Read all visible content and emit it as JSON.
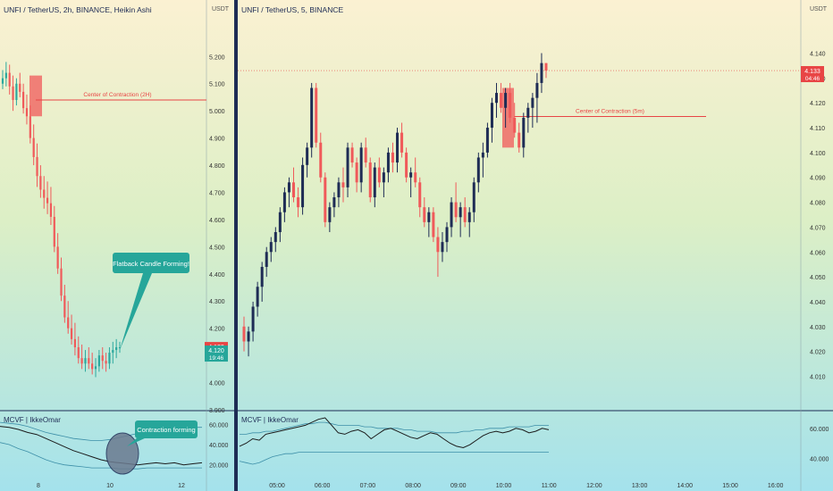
{
  "colors": {
    "bg_top": "#fbf1d2",
    "bg_bottom": "#a4e2ec",
    "bull": "#1e2c55",
    "bear": "#f05a5a",
    "ha_bull": "#2ba89e",
    "ha_bear": "#f05a5a",
    "divider": "#1e2c55",
    "level_line": "#e84545",
    "callout_fill": "#26a69a",
    "price_badge": "#e84545",
    "price_badge_teal": "#26a69a",
    "indicator_line": "#1b1b1b",
    "band_line": "#3d8fa8"
  },
  "chart_data": [
    {
      "type": "candlestick",
      "title": "UNFI / TetherUS, 2h, BINANCE, Heikin Ashi",
      "axis_unit": "USDT",
      "x_ticks": [
        "8",
        "10",
        "12"
      ],
      "y_ticks": [
        "5.200",
        "5.100",
        "5.000",
        "4.900",
        "4.800",
        "4.700",
        "4.600",
        "4.500",
        "4.400",
        "4.300",
        "4.200",
        "4.000",
        "3.900"
      ],
      "ylim": [
        3.9,
        5.27
      ],
      "candles": [
        [
          5.1,
          5.15,
          5.08,
          5.12
        ],
        [
          5.12,
          5.18,
          5.09,
          5.14
        ],
        [
          5.14,
          5.17,
          5.06,
          5.09
        ],
        [
          5.09,
          5.13,
          5.0,
          5.04
        ],
        [
          5.04,
          5.12,
          5.02,
          5.1
        ],
        [
          5.1,
          5.14,
          5.05,
          5.07
        ],
        [
          5.07,
          5.1,
          4.99,
          5.01
        ],
        [
          5.01,
          5.06,
          4.95,
          4.98
        ],
        [
          4.98,
          5.02,
          4.88,
          4.9
        ],
        [
          4.9,
          4.95,
          4.8,
          4.83
        ],
        [
          4.83,
          4.88,
          4.72,
          4.76
        ],
        [
          4.76,
          4.8,
          4.68,
          4.71
        ],
        [
          4.71,
          4.76,
          4.64,
          4.68
        ],
        [
          4.68,
          4.74,
          4.62,
          4.66
        ],
        [
          4.66,
          4.72,
          4.58,
          4.61
        ],
        [
          4.61,
          4.65,
          4.48,
          4.5
        ],
        [
          4.5,
          4.55,
          4.4,
          4.42
        ],
        [
          4.42,
          4.46,
          4.3,
          4.32
        ],
        [
          4.32,
          4.36,
          4.22,
          4.24
        ],
        [
          4.24,
          4.3,
          4.18,
          4.2
        ],
        [
          4.2,
          4.25,
          4.14,
          4.16
        ],
        [
          4.16,
          4.22,
          4.1,
          4.13
        ],
        [
          4.13,
          4.17,
          4.07,
          4.09
        ],
        [
          4.09,
          4.14,
          4.05,
          4.07
        ],
        [
          4.07,
          4.12,
          4.04,
          4.09
        ],
        [
          4.09,
          4.13,
          4.05,
          4.07
        ],
        [
          4.07,
          4.11,
          4.03,
          4.05
        ],
        [
          4.05,
          4.09,
          4.02,
          4.06
        ],
        [
          4.06,
          4.12,
          4.04,
          4.1
        ],
        [
          4.1,
          4.13,
          4.05,
          4.08
        ],
        [
          4.08,
          4.11,
          4.04,
          4.07
        ],
        [
          4.07,
          4.13,
          4.05,
          4.11
        ],
        [
          4.11,
          4.15,
          4.07,
          4.12
        ],
        [
          4.12,
          4.16,
          4.09,
          4.13
        ],
        [
          4.13,
          4.15,
          4.11,
          4.13
        ]
      ],
      "level_line": {
        "value": 5.04,
        "label": "Center of Contraction (2H)"
      },
      "contraction_box": {
        "from": 5.13,
        "to": 4.98
      },
      "price_labels": [
        {
          "value": 4.133,
          "text": "4.133",
          "sub": ""
        },
        {
          "value": 4.12,
          "text": "4.120",
          "sub": "19:46"
        }
      ],
      "callout": "Flatback Candle Forming!"
    },
    {
      "type": "candlestick",
      "title": "UNFI / TetherUS, 5, BINANCE",
      "axis_unit": "USDT",
      "x_ticks": [
        "05:00",
        "06:00",
        "07:00",
        "08:00",
        "09:00",
        "10:00",
        "11:00",
        "12:00",
        "13:00",
        "14:00",
        "15:00",
        "16:00"
      ],
      "y_ticks": [
        "4.140",
        "4.130",
        "4.120",
        "4.110",
        "4.100",
        "4.090",
        "4.080",
        "4.070",
        "4.060",
        "4.050",
        "4.040",
        "4.030",
        "4.020",
        "4.010"
      ],
      "ylim": [
        4.0055,
        4.1445
      ],
      "candles": [
        [
          4.03,
          4.034,
          4.02,
          4.024
        ],
        [
          4.024,
          4.03,
          4.018,
          4.028
        ],
        [
          4.028,
          4.04,
          4.024,
          4.038
        ],
        [
          4.038,
          4.048,
          4.034,
          4.046
        ],
        [
          4.046,
          4.056,
          4.04,
          4.054
        ],
        [
          4.054,
          4.062,
          4.05,
          4.06
        ],
        [
          4.06,
          4.066,
          4.056,
          4.064
        ],
        [
          4.064,
          4.07,
          4.06,
          4.068
        ],
        [
          4.068,
          4.078,
          4.064,
          4.076
        ],
        [
          4.076,
          4.086,
          4.072,
          4.084
        ],
        [
          4.084,
          4.09,
          4.078,
          4.088
        ],
        [
          4.088,
          4.094,
          4.08,
          4.082
        ],
        [
          4.082,
          4.086,
          4.074,
          4.078
        ],
        [
          4.078,
          4.098,
          4.075,
          4.095
        ],
        [
          4.095,
          4.104,
          4.09,
          4.102
        ],
        [
          4.102,
          4.128,
          4.098,
          4.126
        ],
        [
          4.126,
          4.128,
          4.102,
          4.104
        ],
        [
          4.104,
          4.108,
          4.088,
          4.09
        ],
        [
          4.09,
          4.092,
          4.07,
          4.072
        ],
        [
          4.072,
          4.08,
          4.068,
          4.078
        ],
        [
          4.078,
          4.084,
          4.074,
          4.082
        ],
        [
          4.082,
          4.09,
          4.078,
          4.088
        ],
        [
          4.088,
          4.094,
          4.08,
          4.086
        ],
        [
          4.086,
          4.104,
          4.082,
          4.102
        ],
        [
          4.102,
          4.104,
          4.094,
          4.096
        ],
        [
          4.096,
          4.098,
          4.084,
          4.088
        ],
        [
          4.088,
          4.104,
          4.084,
          4.102
        ],
        [
          4.102,
          4.106,
          4.094,
          4.096
        ],
        [
          4.096,
          4.098,
          4.08,
          4.082
        ],
        [
          4.082,
          4.096,
          4.078,
          4.094
        ],
        [
          4.094,
          4.098,
          4.086,
          4.088
        ],
        [
          4.088,
          4.094,
          4.082,
          4.092
        ],
        [
          4.092,
          4.102,
          4.088,
          4.1
        ],
        [
          4.1,
          4.104,
          4.092,
          4.096
        ],
        [
          4.096,
          4.11,
          4.092,
          4.108
        ],
        [
          4.108,
          4.112,
          4.098,
          4.1
        ],
        [
          4.1,
          4.102,
          4.088,
          4.09
        ],
        [
          4.09,
          4.094,
          4.082,
          4.092
        ],
        [
          4.092,
          4.098,
          4.086,
          4.088
        ],
        [
          4.088,
          4.09,
          4.074,
          4.078
        ],
        [
          4.078,
          4.082,
          4.07,
          4.072
        ],
        [
          4.072,
          4.078,
          4.066,
          4.076
        ],
        [
          4.076,
          4.078,
          4.064,
          4.066
        ],
        [
          4.066,
          4.07,
          4.05,
          4.06
        ],
        [
          4.06,
          4.068,
          4.056,
          4.064
        ],
        [
          4.064,
          4.072,
          4.06,
          4.07
        ],
        [
          4.07,
          4.082,
          4.066,
          4.08
        ],
        [
          4.08,
          4.088,
          4.072,
          4.074
        ],
        [
          4.074,
          4.08,
          4.066,
          4.078
        ],
        [
          4.078,
          4.082,
          4.07,
          4.072
        ],
        [
          4.072,
          4.078,
          4.066,
          4.076
        ],
        [
          4.076,
          4.09,
          4.072,
          4.088
        ],
        [
          4.088,
          4.1,
          4.084,
          4.098
        ],
        [
          4.098,
          4.104,
          4.09,
          4.1
        ],
        [
          4.1,
          4.112,
          4.098,
          4.11
        ],
        [
          4.11,
          4.122,
          4.104,
          4.12
        ],
        [
          4.12,
          4.128,
          4.114,
          4.124
        ],
        [
          4.124,
          4.128,
          4.116,
          4.118
        ],
        [
          4.118,
          4.126,
          4.11,
          4.124
        ],
        [
          4.124,
          4.128,
          4.112,
          4.114
        ],
        [
          4.114,
          4.12,
          4.106,
          4.108
        ],
        [
          4.108,
          4.112,
          4.1,
          4.102
        ],
        [
          4.102,
          4.116,
          4.098,
          4.114
        ],
        [
          4.114,
          4.12,
          4.108,
          4.118
        ],
        [
          4.118,
          4.124,
          4.11,
          4.122
        ],
        [
          4.122,
          4.132,
          4.112,
          4.128
        ],
        [
          4.128,
          4.14,
          4.124,
          4.136
        ],
        [
          4.136,
          4.136,
          4.13,
          4.133
        ]
      ],
      "level_line": {
        "value": 4.1145,
        "label": "Center of Contraction (5m)"
      },
      "contraction_box": {
        "from": 4.126,
        "to": 4.102
      },
      "current_price_line": 4.133,
      "price_labels": [
        {
          "value": 4.133,
          "text": "4.133",
          "sub": "04:46"
        }
      ]
    }
  ],
  "indicators": [
    {
      "title": "MCVF | IkkeOmar",
      "y_ticks": [
        "60.000",
        "40.000",
        "20.000"
      ],
      "callout": "Contraction forming",
      "line": [
        58,
        57,
        55,
        52,
        50,
        46,
        42,
        38,
        34,
        31,
        28,
        25,
        23,
        22,
        21,
        20,
        21,
        22,
        21,
        22,
        20,
        21,
        22
      ],
      "upper": [
        62,
        61,
        60,
        58,
        55,
        52,
        50,
        48,
        46,
        45,
        44,
        44,
        45,
        47,
        49,
        51,
        53,
        54,
        55,
        56,
        56,
        57,
        57
      ],
      "lower": [
        42,
        40,
        36,
        33,
        29,
        25,
        22,
        20,
        19,
        18,
        17,
        17,
        17,
        16,
        16,
        16,
        17,
        17,
        17,
        17,
        17,
        17,
        17
      ]
    },
    {
      "title": "MCVF | IkkeOmar",
      "y_ticks": [
        "60.000",
        "40.000"
      ],
      "line": [
        48,
        50,
        53,
        52,
        56,
        57,
        58,
        59,
        60,
        61,
        62,
        64,
        66,
        67,
        62,
        57,
        56,
        58,
        59,
        57,
        53,
        56,
        59,
        60,
        58,
        56,
        54,
        53,
        55,
        57,
        56,
        53,
        50,
        48,
        47,
        49,
        52,
        55,
        57,
        58,
        57,
        58,
        60,
        59,
        57,
        58,
        60,
        59
      ],
      "upper": [
        56,
        56,
        57,
        57,
        58,
        58,
        59,
        60,
        61,
        62,
        63,
        63,
        64,
        64,
        63,
        62,
        62,
        62,
        62,
        61,
        61,
        60,
        60,
        60,
        60,
        59,
        59,
        58,
        58,
        58,
        57,
        57,
        57,
        57,
        58,
        58,
        59,
        59,
        60,
        60,
        60,
        61,
        61,
        61,
        61,
        62,
        62,
        62
      ],
      "lower": [
        38,
        37,
        36,
        37,
        39,
        41,
        42,
        43,
        43,
        44,
        44,
        44,
        44,
        44,
        44,
        44,
        44,
        44,
        44,
        44,
        44,
        44,
        44,
        44,
        44,
        44,
        44,
        44,
        44,
        44,
        44,
        44,
        44,
        44,
        44,
        44,
        44,
        44,
        44,
        44,
        44,
        44,
        44,
        44,
        44,
        44,
        44,
        44
      ]
    }
  ]
}
